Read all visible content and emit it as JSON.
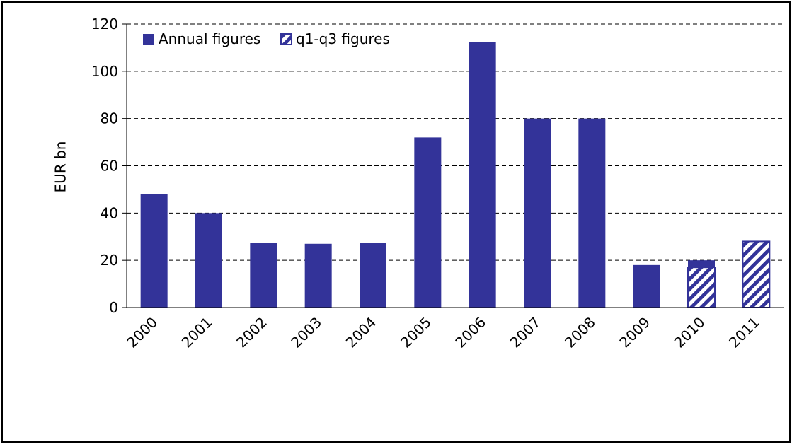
{
  "chart_data": {
    "type": "bar",
    "ylabel": "EUR bn",
    "ylim": [
      0,
      120
    ],
    "yticks": [
      "0",
      "20",
      "40",
      "60",
      "80",
      "100",
      "120"
    ],
    "grid": "horizontal dashed",
    "legend_position": "top-left",
    "categories": [
      "2000",
      "2001",
      "2002",
      "2003",
      "2004",
      "2005",
      "2006",
      "2007",
      "2008",
      "2009",
      "2010",
      "2011"
    ],
    "series": [
      {
        "name": "Annual figures",
        "style": "solid",
        "values": [
          48,
          40,
          27.5,
          27,
          27.5,
          72,
          112.5,
          80,
          80,
          18,
          20,
          null
        ]
      },
      {
        "name": "q1-q3 figures",
        "style": "hatched",
        "values": [
          null,
          null,
          null,
          null,
          null,
          null,
          null,
          null,
          null,
          null,
          17,
          28
        ]
      }
    ],
    "colors": {
      "bar": "#333399",
      "hatch_background": "#ffffff",
      "grid": "#000000",
      "axis": "#000000"
    }
  }
}
